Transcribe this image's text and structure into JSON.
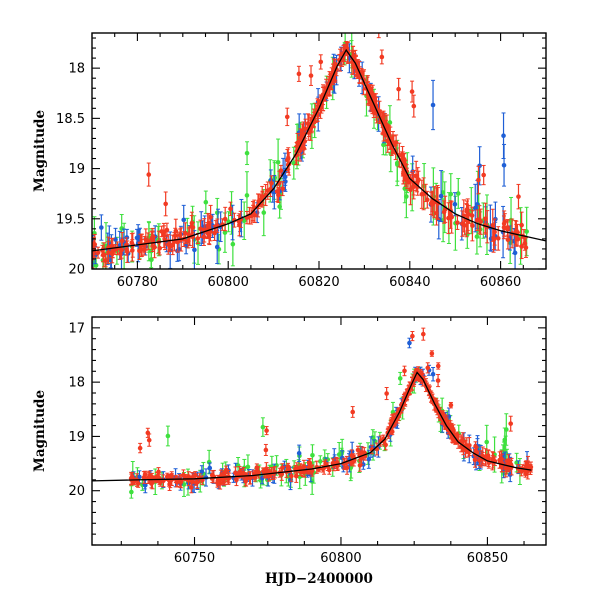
{
  "chart_data": [
    {
      "type": "scatter",
      "title": "",
      "xlabel": "",
      "ylabel": "Magnitude",
      "xlim": [
        60770,
        60870
      ],
      "ylim": [
        20,
        17.65
      ],
      "y_inverted": true,
      "xticks": [
        60780,
        60800,
        60820,
        60840,
        60860
      ],
      "xtick_labels": [
        "60780",
        "60800",
        "60820",
        "60840",
        "60860"
      ],
      "yticks": [
        18,
        18.5,
        19,
        19.5,
        20
      ],
      "ytick_labels": [
        "18",
        "18.5",
        "19",
        "19.5",
        "20"
      ],
      "series_colors": {
        "blue": "#1f5fd6",
        "green": "#3ee03e",
        "red": "#f23a22",
        "model": "#000000"
      },
      "model_curve": [
        [
          60770,
          19.82
        ],
        [
          60780,
          19.76
        ],
        [
          60790,
          19.7
        ],
        [
          60800,
          19.55
        ],
        [
          60805,
          19.45
        ],
        [
          60810,
          19.2
        ],
        [
          60815,
          18.85
        ],
        [
          60820,
          18.4
        ],
        [
          60824,
          17.98
        ],
        [
          60826,
          17.82
        ],
        [
          60828,
          17.95
        ],
        [
          60832,
          18.35
        ],
        [
          60836,
          18.75
        ],
        [
          60840,
          19.1
        ],
        [
          60845,
          19.3
        ],
        [
          60850,
          19.45
        ],
        [
          60855,
          19.55
        ],
        [
          60860,
          19.62
        ],
        [
          60870,
          19.72
        ]
      ]
    },
    {
      "type": "scatter",
      "title": "",
      "xlabel": "HJD−2400000",
      "ylabel": "Magnitude",
      "xlim": [
        60715,
        60870
      ],
      "ylim": [
        21,
        16.8
      ],
      "y_inverted": true,
      "xticks": [
        60750,
        60800,
        60850
      ],
      "xtick_labels": [
        "60750",
        "60800",
        "60850"
      ],
      "yticks": [
        17,
        18,
        19,
        20
      ],
      "ytick_labels": [
        "17",
        "18",
        "19",
        "20"
      ],
      "series_colors": {
        "blue": "#1f5fd6",
        "green": "#3ee03e",
        "red": "#f23a22",
        "model": "#000000"
      },
      "model_curve": [
        [
          60715,
          19.82
        ],
        [
          60730,
          19.8
        ],
        [
          60750,
          19.78
        ],
        [
          60770,
          19.72
        ],
        [
          60790,
          19.6
        ],
        [
          60800,
          19.5
        ],
        [
          60810,
          19.3
        ],
        [
          60815,
          19.05
        ],
        [
          60820,
          18.55
        ],
        [
          60824,
          18.05
        ],
        [
          60826,
          17.82
        ],
        [
          60828,
          17.95
        ],
        [
          60832,
          18.4
        ],
        [
          60836,
          18.8
        ],
        [
          60840,
          19.1
        ],
        [
          60845,
          19.3
        ],
        [
          60850,
          19.45
        ],
        [
          60860,
          19.58
        ],
        [
          60865,
          19.62
        ]
      ]
    }
  ]
}
